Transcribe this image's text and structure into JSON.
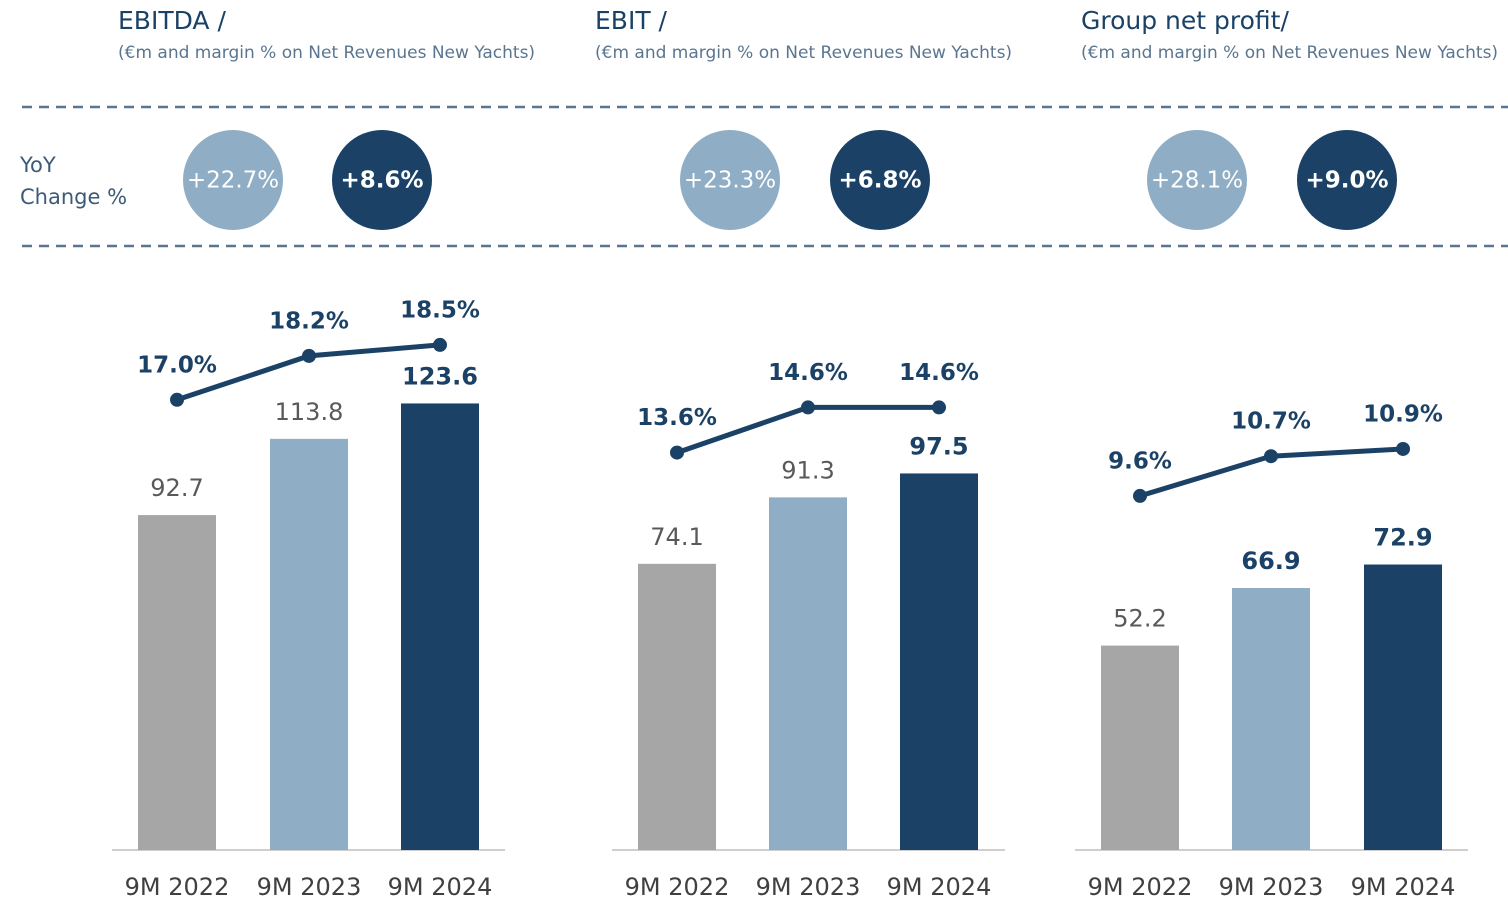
{
  "row_label": [
    "YoY",
    "Change %"
  ],
  "chart_data": [
    {
      "type": "bar",
      "title": "EBITDA /",
      "subtitle": "(€m and margin % on Net Revenues New Yachts)",
      "categories": [
        "9M 2022",
        "9M 2023",
        "9M 2024"
      ],
      "yoy": {
        "values": [
          22.7,
          8.6
        ],
        "value_labels": [
          "+22.7%",
          "+8.6%"
        ],
        "colors": [
          "#8fadc4",
          "#1b4266"
        ]
      },
      "series": [
        {
          "type": "bar",
          "values": [
            92.7,
            113.8,
            123.6
          ],
          "colors": [
            "#a6a6a6",
            "#8fadc4",
            "#1b4266"
          ],
          "label_colors": [
            "#595959",
            "#595959",
            "#1b4266"
          ]
        },
        {
          "type": "line",
          "axis": "y2",
          "color": "#1b4266",
          "values": [
            17.0,
            18.2,
            18.5
          ],
          "value_labels": [
            "17.0%",
            "18.2%",
            "18.5%"
          ]
        }
      ],
      "ylim": [
        0,
        155
      ],
      "y2lim": [
        4.7,
        20
      ]
    },
    {
      "type": "bar",
      "title": "EBIT /",
      "subtitle": "(€m and margin % on Net Revenues New Yachts)",
      "categories": [
        "9M 2022",
        "9M 2023",
        "9M 2024"
      ],
      "yoy": {
        "values": [
          23.3,
          6.8
        ],
        "value_labels": [
          "+23.3%",
          "+6.8%"
        ],
        "colors": [
          "#8fadc4",
          "#1b4266"
        ]
      },
      "series": [
        {
          "type": "bar",
          "values": [
            74.1,
            91.3,
            97.5
          ],
          "colors": [
            "#a6a6a6",
            "#8fadc4",
            "#1b4266"
          ],
          "label_colors": [
            "#595959",
            "#595959",
            "#1b4266"
          ]
        },
        {
          "type": "line",
          "axis": "y2",
          "color": "#1b4266",
          "values": [
            13.6,
            14.6,
            14.6
          ],
          "value_labels": [
            "13.6%",
            "14.6%",
            "14.6%"
          ]
        }
      ],
      "ylim": [
        0,
        145
      ],
      "y2lim": [
        4.8,
        17.2
      ]
    },
    {
      "type": "bar",
      "title": "Group net profit/",
      "subtitle": "(€m and margin % on Net Revenues New Yachts)",
      "categories": [
        "9M 2022",
        "9M 2023",
        "9M 2024"
      ],
      "yoy": {
        "values": [
          28.1,
          9.0
        ],
        "value_labels": [
          "+28.1%",
          "+9.0%"
        ],
        "colors": [
          "#8fadc4",
          "#1b4266"
        ]
      },
      "series": [
        {
          "type": "bar",
          "values": [
            52.2,
            66.9,
            72.9
          ],
          "colors": [
            "#a6a6a6",
            "#8fadc4",
            "#1b4266"
          ],
          "label_colors": [
            "#595959",
            "#1b4266",
            "#1b4266"
          ]
        },
        {
          "type": "line",
          "axis": "y2",
          "color": "#1b4266",
          "values": [
            9.6,
            10.7,
            10.9
          ],
          "value_labels": [
            "9.6%",
            "10.7%",
            "10.9%"
          ]
        }
      ],
      "ylim": [
        0,
        143
      ],
      "y2lim": [
        -0.2,
        15.3
      ]
    }
  ]
}
